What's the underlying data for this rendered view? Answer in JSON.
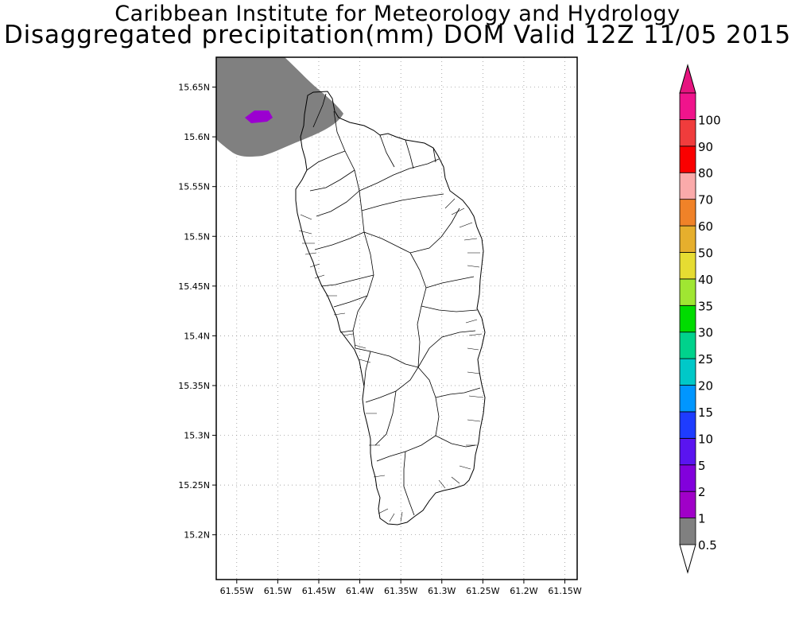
{
  "title": {
    "line1": "Caribbean Institute for Meteorology and Hydrology",
    "line2": "Disaggregated precipitation(mm) DOM Valid 12Z 11/05 2015"
  },
  "map": {
    "lon_range": [
      -61.575,
      -61.135
    ],
    "lat_range": [
      15.155,
      15.68
    ],
    "lon_ticks": [
      {
        "value": -61.55,
        "label": "61.55W"
      },
      {
        "value": -61.5,
        "label": "61.5W"
      },
      {
        "value": -61.45,
        "label": "61.45W"
      },
      {
        "value": -61.4,
        "label": "61.4W"
      },
      {
        "value": -61.35,
        "label": "61.35W"
      },
      {
        "value": -61.3,
        "label": "61.3W"
      },
      {
        "value": -61.25,
        "label": "61.25W"
      },
      {
        "value": -61.2,
        "label": "61.2W"
      },
      {
        "value": -61.15,
        "label": "61.15W"
      }
    ],
    "lat_ticks": [
      {
        "value": 15.65,
        "label": "15.65N"
      },
      {
        "value": 15.6,
        "label": "15.6N"
      },
      {
        "value": 15.55,
        "label": "15.55N"
      },
      {
        "value": 15.5,
        "label": "15.5N"
      },
      {
        "value": 15.45,
        "label": "15.45N"
      },
      {
        "value": 15.4,
        "label": "15.4N"
      },
      {
        "value": 15.35,
        "label": "15.35N"
      },
      {
        "value": 15.3,
        "label": "15.3N"
      },
      {
        "value": 15.25,
        "label": "15.25N"
      },
      {
        "value": 15.2,
        "label": "15.2N"
      }
    ],
    "grid": true,
    "precip_areas": [
      {
        "range": "0.5-1",
        "color": "#808080"
      },
      {
        "range": "1-2",
        "color": "#9b00d0"
      }
    ]
  },
  "colorbar": {
    "levels": [
      {
        "label": "0.5",
        "color": "#808080"
      },
      {
        "label": "1",
        "color": "#a000c8"
      },
      {
        "label": "2",
        "color": "#8200dc"
      },
      {
        "label": "5",
        "color": "#5a14f0"
      },
      {
        "label": "10",
        "color": "#1e3cff"
      },
      {
        "label": "15",
        "color": "#0096ff"
      },
      {
        "label": "20",
        "color": "#00c8c8"
      },
      {
        "label": "25",
        "color": "#00d28c"
      },
      {
        "label": "30",
        "color": "#00dc00"
      },
      {
        "label": "35",
        "color": "#a0e632"
      },
      {
        "label": "40",
        "color": "#e6dc32"
      },
      {
        "label": "50",
        "color": "#e6af2d"
      },
      {
        "label": "60",
        "color": "#f08228"
      },
      {
        "label": "70",
        "color": "#faaaaa"
      },
      {
        "label": "80",
        "color": "#fa0000"
      },
      {
        "label": "90",
        "color": "#f03c3c"
      },
      {
        "label": "100",
        "color": "#f0148c"
      }
    ],
    "low_arrow_color": "#ffffff",
    "high_arrow_color": "#e6147f"
  }
}
